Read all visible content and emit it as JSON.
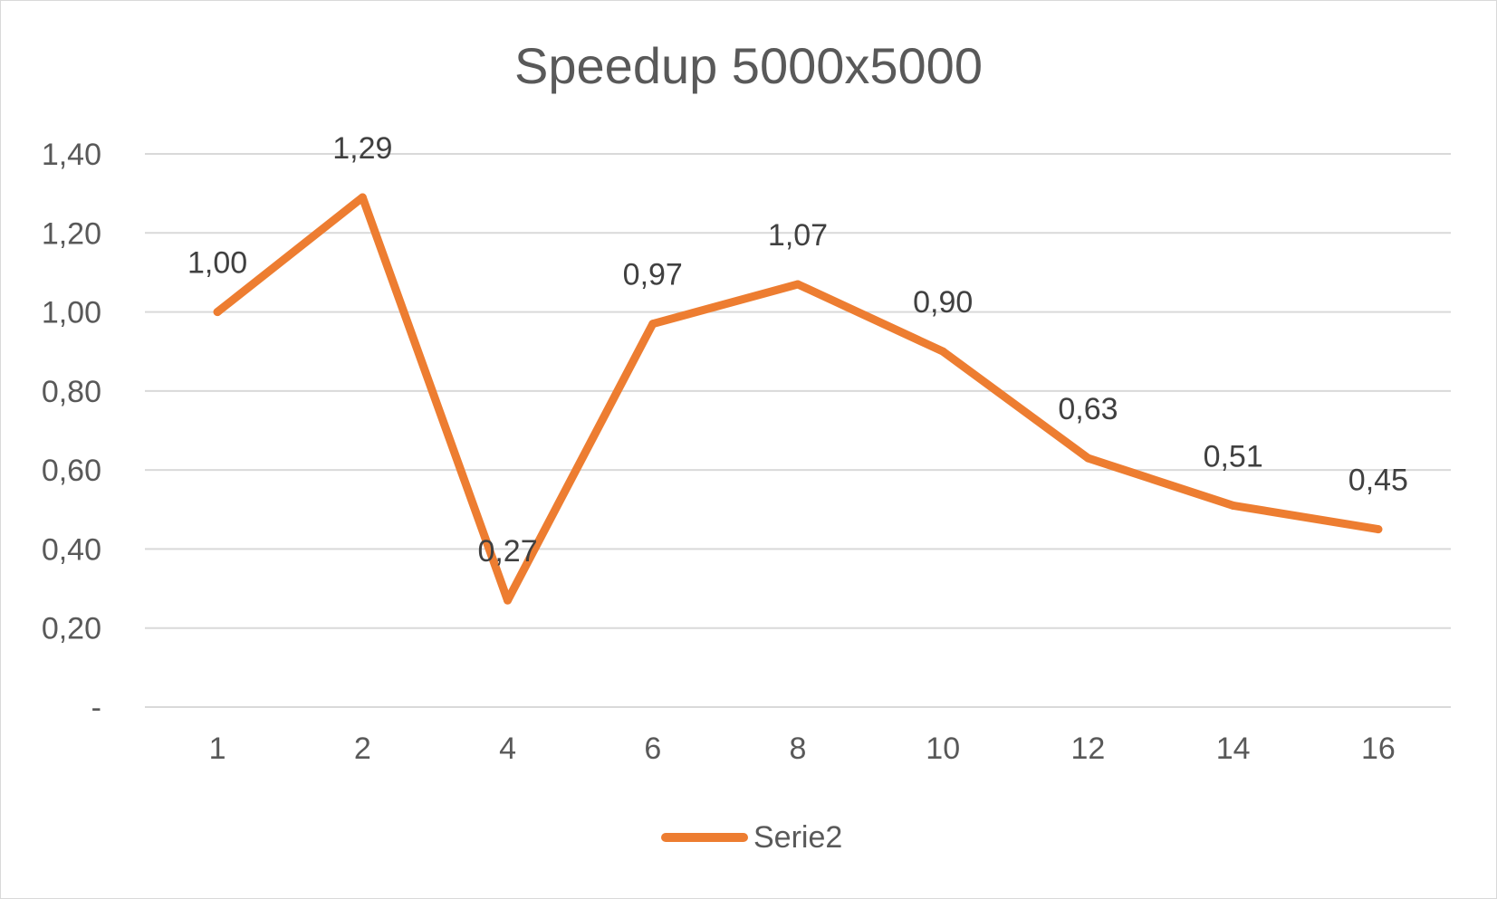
{
  "chart_data": {
    "type": "line",
    "title": "Speedup 5000x5000",
    "categories": [
      "1",
      "2",
      "4",
      "6",
      "8",
      "10",
      "12",
      "14",
      "16"
    ],
    "series": [
      {
        "name": "Serie2",
        "values": [
          1.0,
          1.29,
          0.27,
          0.97,
          1.07,
          0.9,
          0.63,
          0.51,
          0.45
        ],
        "labels": [
          "1,00",
          "1,29",
          "0,27",
          "0,97",
          "1,07",
          "0,90",
          "0,63",
          "0,51",
          "0,45"
        ],
        "color": "#ED7D31"
      }
    ],
    "yticks": [
      0,
      0.2,
      0.4,
      0.6,
      0.8,
      1.0,
      1.2,
      1.4
    ],
    "ytick_labels": [
      "-",
      "0,20",
      "0,40",
      "0,60",
      "0,80",
      "1,00",
      "1,20",
      "1,40"
    ],
    "ylim": [
      0,
      1.4
    ],
    "grid": true,
    "legend_position": "bottom",
    "gridline_color": "#d9d9d9"
  }
}
